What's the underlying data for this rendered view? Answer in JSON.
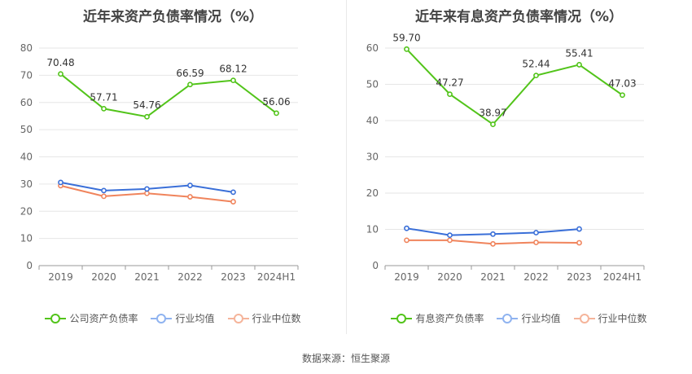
{
  "chart_data": [
    {
      "type": "line",
      "title": "近年来资产负债率情况（%）",
      "categories": [
        "2019",
        "2020",
        "2021",
        "2022",
        "2023",
        "2024H1"
      ],
      "ylim": [
        0,
        80
      ],
      "yticks": [
        0,
        10,
        20,
        30,
        40,
        50,
        60,
        70,
        80
      ],
      "grid": true,
      "legend_position": "bottom",
      "series": [
        {
          "name": "公司资产负债率",
          "color": "#52c41a",
          "values": [
            70.48,
            57.71,
            54.76,
            66.59,
            68.12,
            56.06
          ],
          "labels": [
            "70.48",
            "57.71",
            "54.76",
            "66.59",
            "68.12",
            "56.06"
          ]
        },
        {
          "name": "行业均值",
          "color": "#3a6fd8",
          "values": [
            30.6,
            27.6,
            28.2,
            29.5,
            27.0,
            null
          ]
        },
        {
          "name": "行业中位数",
          "color": "#f0845c",
          "values": [
            29.4,
            25.5,
            26.6,
            25.3,
            23.5,
            null
          ]
        }
      ]
    },
    {
      "type": "line",
      "title": "近年来有息资产负债率情况（%）",
      "categories": [
        "2019",
        "2020",
        "2021",
        "2022",
        "2023",
        "2024H1"
      ],
      "ylim": [
        0,
        60
      ],
      "yticks": [
        0,
        10,
        20,
        30,
        40,
        50,
        60
      ],
      "grid": true,
      "legend_position": "bottom",
      "series": [
        {
          "name": "有息资产负债率",
          "color": "#52c41a",
          "values": [
            59.7,
            47.27,
            38.97,
            52.44,
            55.41,
            47.03
          ],
          "labels": [
            "59.70",
            "47.27",
            "38.97",
            "52.44",
            "55.41",
            "47.03"
          ]
        },
        {
          "name": "行业均值",
          "color": "#3a6fd8",
          "values": [
            10.3,
            8.4,
            8.7,
            9.1,
            10.1,
            null
          ]
        },
        {
          "name": "行业中位数",
          "color": "#f0845c",
          "values": [
            7.0,
            7.0,
            6.0,
            6.4,
            6.3,
            null
          ]
        }
      ]
    }
  ],
  "legend_colors": {
    "primary": "#52c41a",
    "mean": "#8fb3f0",
    "median": "#f5b49a"
  },
  "source_text": "数据来源：恒生聚源"
}
